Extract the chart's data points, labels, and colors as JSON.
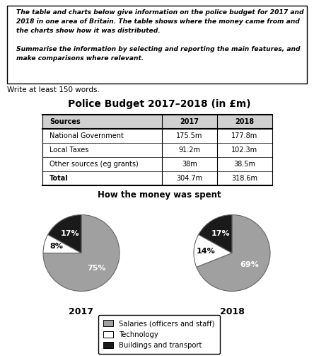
{
  "title_box_lines": [
    "The table and charts below give information on the police budget for 2017 and",
    "2018 in one area of Britain. The table shows where the money came from and",
    "the charts show how it was distributed.",
    "",
    "Summarise the information by selecting and reporting the main features, and",
    "make comparisons where relevant."
  ],
  "write_text": "Write at least 150 words.",
  "table_title": "Police Budget 2017–2018 (in £m)",
  "table_headers": [
    "Sources",
    "2017",
    "2018"
  ],
  "table_rows": [
    [
      "National Government",
      "175.5m",
      "177.8m"
    ],
    [
      "Local Taxes",
      "91.2m",
      "102.3m"
    ],
    [
      "Other sources (eg grants)",
      "38m",
      "38.5m"
    ],
    [
      "Total",
      "304.7m",
      "318.6m"
    ]
  ],
  "pie_title": "How the money was spent",
  "pie_2017": [
    75,
    8,
    17
  ],
  "pie_2018": [
    69,
    14,
    17
  ],
  "pie_labels_2017": [
    "75%",
    "8%",
    "17%"
  ],
  "pie_labels_2018": [
    "69%",
    "14%",
    "17%"
  ],
  "pie_label_colors_2017": [
    "white",
    "black",
    "white"
  ],
  "pie_label_colors_2018": [
    "white",
    "black",
    "white"
  ],
  "pie_colors": [
    "#a0a0a0",
    "#ffffff",
    "#1a1a1a"
  ],
  "pie_edge_color": "#666666",
  "pie_year_labels": [
    "2017",
    "2018"
  ],
  "legend_labels": [
    "Salaries (officers and staff)",
    "Technology",
    "Buildings and transport"
  ],
  "legend_colors": [
    "#a0a0a0",
    "#ffffff",
    "#1a1a1a"
  ],
  "background_color": "#ffffff",
  "pie_label_radii_2017": [
    0.55,
    0.68,
    0.6
  ],
  "pie_label_radii_2018": [
    0.55,
    0.68,
    0.6
  ]
}
